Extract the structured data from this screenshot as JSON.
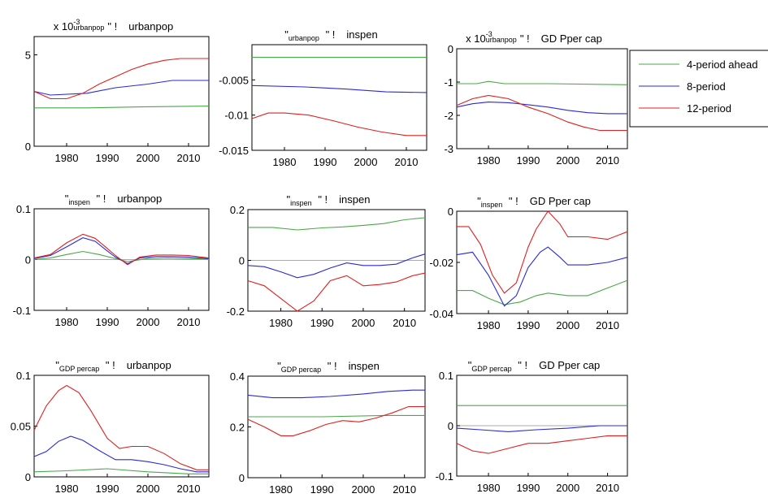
{
  "colors": {
    "s4": "#4aa84a",
    "s8": "#2a2ad8",
    "s12": "#e02020",
    "zero": "#aaaaaa"
  },
  "legend": {
    "entries": [
      "4-period ahead",
      "8-period",
      "12-period"
    ]
  },
  "chart_data": [
    {
      "type": "line",
      "title_small": "x 10",
      "title_exp": "-3",
      "title_sub": "urbanpop",
      "title_mid": "\" !",
      "title_main": "urbanpop",
      "ylim": [
        0,
        6
      ],
      "yticks": [
        "0",
        "5"
      ],
      "ytick_values": [
        0,
        5
      ],
      "xlim": [
        1972,
        2015
      ],
      "xticks": [
        "1980",
        "1990",
        "2000",
        "2010"
      ],
      "xtick_values": [
        1980,
        1990,
        2000,
        2010
      ],
      "zero_line": false,
      "series": [
        {
          "key": "s4",
          "x": [
            1972,
            1985,
            1998,
            2015
          ],
          "y": [
            2.1,
            2.1,
            2.15,
            2.2
          ]
        },
        {
          "key": "s8",
          "x": [
            1972,
            1976,
            1985,
            1992,
            2000,
            2006,
            2015
          ],
          "y": [
            3.0,
            2.8,
            2.9,
            3.2,
            3.4,
            3.6,
            3.6
          ]
        },
        {
          "key": "s12",
          "x": [
            1972,
            1976,
            1980,
            1984,
            1988,
            1992,
            1996,
            2000,
            2004,
            2008,
            2015
          ],
          "y": [
            3.0,
            2.6,
            2.6,
            2.9,
            3.4,
            3.8,
            4.2,
            4.5,
            4.7,
            4.8,
            4.8
          ]
        }
      ]
    },
    {
      "type": "line",
      "title_small": "",
      "title_exp": "",
      "title_sub": "urbanpop",
      "title_mid": "\" !",
      "title_main": "inspen",
      "ylim": [
        -0.015,
        0
      ],
      "yticks": [
        "-0.015",
        "-0.01",
        "-0.005"
      ],
      "ytick_values": [
        -0.015,
        -0.01,
        -0.005
      ],
      "xlim": [
        1972,
        2015
      ],
      "xticks": [
        "1980",
        "1990",
        "2000",
        "2010"
      ],
      "xtick_values": [
        1980,
        1990,
        2000,
        2010
      ],
      "zero_line": false,
      "series": [
        {
          "key": "s4",
          "x": [
            1972,
            2015
          ],
          "y": [
            -0.0018,
            -0.0018
          ]
        },
        {
          "key": "s8",
          "x": [
            1972,
            1985,
            1995,
            2005,
            2015
          ],
          "y": [
            -0.0058,
            -0.006,
            -0.0063,
            -0.0067,
            -0.0068
          ]
        },
        {
          "key": "s12",
          "x": [
            1972,
            1976,
            1980,
            1986,
            1992,
            1998,
            2004,
            2010,
            2015
          ],
          "y": [
            -0.0105,
            -0.0097,
            -0.0097,
            -0.01,
            -0.0108,
            -0.0117,
            -0.0124,
            -0.0129,
            -0.0129
          ]
        }
      ]
    },
    {
      "type": "line",
      "title_small": "x 10",
      "title_exp": "-3",
      "title_sub": "urbanpop",
      "title_mid": "\" !",
      "title_main": "GD Pper cap",
      "ylim": [
        -3,
        0
      ],
      "yticks": [
        "-3",
        "-2",
        "-1",
        "0"
      ],
      "ytick_values": [
        -3,
        -2,
        -1,
        0
      ],
      "xlim": [
        1972,
        2015
      ],
      "xticks": [
        "1980",
        "1990",
        "2000",
        "2010"
      ],
      "xtick_values": [
        1980,
        1990,
        2000,
        2010
      ],
      "zero_line": false,
      "series": [
        {
          "key": "s4",
          "x": [
            1972,
            1977,
            1980,
            1984,
            1995,
            2015
          ],
          "y": [
            -1.05,
            -1.05,
            -0.98,
            -1.05,
            -1.05,
            -1.08
          ]
        },
        {
          "key": "s8",
          "x": [
            1972,
            1976,
            1980,
            1985,
            1990,
            1995,
            2000,
            2005,
            2010,
            2015
          ],
          "y": [
            -1.75,
            -1.65,
            -1.6,
            -1.62,
            -1.68,
            -1.75,
            -1.85,
            -1.92,
            -1.95,
            -1.95
          ]
        },
        {
          "key": "s12",
          "x": [
            1972,
            1976,
            1980,
            1985,
            1990,
            1995,
            2000,
            2004,
            2008,
            2015
          ],
          "y": [
            -1.7,
            -1.5,
            -1.4,
            -1.5,
            -1.75,
            -1.95,
            -2.2,
            -2.35,
            -2.45,
            -2.45
          ]
        }
      ]
    },
    {
      "type": "line",
      "title_small": "",
      "title_exp": "",
      "title_sub": "inspen",
      "title_mid": "\" !",
      "title_main": "urbanpop",
      "ylim": [
        -0.1,
        0.1
      ],
      "yticks": [
        "-0.1",
        "0",
        "0.1"
      ],
      "ytick_values": [
        -0.1,
        0,
        0.1
      ],
      "xlim": [
        1972,
        2015
      ],
      "xticks": [
        "1980",
        "1990",
        "2000",
        "2010"
      ],
      "xtick_values": [
        1980,
        1990,
        2000,
        2010
      ],
      "zero_line": true,
      "series": [
        {
          "key": "s4",
          "x": [
            1972,
            1976,
            1980,
            1984,
            1988,
            1992,
            1995,
            2000,
            2005,
            2010,
            2015
          ],
          "y": [
            0.0,
            0.003,
            0.01,
            0.016,
            0.01,
            0.002,
            -0.004,
            0.002,
            0.003,
            0.002,
            0.001
          ]
        },
        {
          "key": "s8",
          "x": [
            1972,
            1976,
            1980,
            1984,
            1987,
            1990,
            1992,
            1995,
            1998,
            2002,
            2006,
            2010,
            2015
          ],
          "y": [
            0.002,
            0.008,
            0.025,
            0.043,
            0.036,
            0.017,
            0.005,
            -0.008,
            0.003,
            0.006,
            0.006,
            0.005,
            0.002
          ]
        },
        {
          "key": "s12",
          "x": [
            1972,
            1976,
            1980,
            1984,
            1987,
            1990,
            1992,
            1995,
            1998,
            2002,
            2006,
            2010,
            2015
          ],
          "y": [
            0.003,
            0.01,
            0.033,
            0.05,
            0.042,
            0.022,
            0.008,
            -0.01,
            0.005,
            0.009,
            0.009,
            0.008,
            0.003
          ]
        }
      ]
    },
    {
      "type": "line",
      "title_small": "",
      "title_exp": "",
      "title_sub": "inspen",
      "title_mid": "\" !",
      "title_main": "inspen",
      "ylim": [
        -0.2,
        0.2
      ],
      "yticks": [
        "-0.2",
        "0",
        "0.2"
      ],
      "ytick_values": [
        -0.2,
        0,
        0.2
      ],
      "xlim": [
        1972,
        2015
      ],
      "xticks": [
        "1980",
        "1990",
        "2000",
        "2010"
      ],
      "xtick_values": [
        1980,
        1990,
        2000,
        2010
      ],
      "zero_line": true,
      "series": [
        {
          "key": "s4",
          "x": [
            1972,
            1978,
            1984,
            1990,
            1995,
            2000,
            2005,
            2010,
            2015
          ],
          "y": [
            0.13,
            0.13,
            0.12,
            0.128,
            0.132,
            0.138,
            0.145,
            0.16,
            0.168
          ]
        },
        {
          "key": "s8",
          "x": [
            1972,
            1976,
            1980,
            1984,
            1988,
            1992,
            1996,
            2000,
            2004,
            2008,
            2012,
            2015
          ],
          "y": [
            -0.02,
            -0.025,
            -0.045,
            -0.068,
            -0.055,
            -0.03,
            -0.01,
            -0.02,
            -0.02,
            -0.015,
            0.01,
            0.025
          ]
        },
        {
          "key": "s12",
          "x": [
            1972,
            1976,
            1980,
            1984,
            1988,
            1992,
            1996,
            2000,
            2004,
            2008,
            2012,
            2015
          ],
          "y": [
            -0.08,
            -0.1,
            -0.15,
            -0.2,
            -0.16,
            -0.08,
            -0.06,
            -0.1,
            -0.095,
            -0.085,
            -0.06,
            -0.05
          ]
        }
      ]
    },
    {
      "type": "line",
      "title_small": "",
      "title_exp": "",
      "title_sub": "inspen",
      "title_mid": "\" !",
      "title_main": "GD Pper cap",
      "ylim": [
        -0.04,
        0
      ],
      "yticks": [
        "-0.04",
        "-0.02",
        "0"
      ],
      "ytick_values": [
        -0.04,
        -0.02,
        0
      ],
      "xlim": [
        1972,
        2015
      ],
      "xticks": [
        "1980",
        "1990",
        "2000",
        "2010"
      ],
      "xtick_values": [
        1980,
        1990,
        2000,
        2010
      ],
      "zero_line": false,
      "series": [
        {
          "key": "s4",
          "x": [
            1972,
            1976,
            1980,
            1984,
            1988,
            1992,
            1995,
            2000,
            2005,
            2010,
            2015
          ],
          "y": [
            -0.031,
            -0.031,
            -0.034,
            -0.0365,
            -0.0355,
            -0.033,
            -0.032,
            -0.033,
            -0.033,
            -0.03,
            -0.027
          ]
        },
        {
          "key": "s8",
          "x": [
            1972,
            1976,
            1980,
            1984,
            1987,
            1990,
            1993,
            1995,
            1998,
            2000,
            2005,
            2010,
            2015
          ],
          "y": [
            -0.017,
            -0.016,
            -0.025,
            -0.037,
            -0.033,
            -0.022,
            -0.016,
            -0.014,
            -0.018,
            -0.021,
            -0.021,
            -0.02,
            -0.018
          ]
        },
        {
          "key": "s12",
          "x": [
            1972,
            1975,
            1978,
            1981,
            1984,
            1987,
            1990,
            1992,
            1995,
            1998,
            2000,
            2005,
            2010,
            2015
          ],
          "y": [
            -0.006,
            -0.006,
            -0.013,
            -0.025,
            -0.032,
            -0.028,
            -0.014,
            -0.007,
            0.0,
            -0.005,
            -0.01,
            -0.01,
            -0.011,
            -0.008
          ]
        }
      ]
    },
    {
      "type": "line",
      "title_small": "",
      "title_exp": "",
      "title_sub": "GDP percap",
      "title_mid": "\" !",
      "title_main": "urbanpop",
      "ylim": [
        0,
        0.1
      ],
      "yticks": [
        "0",
        "0.05",
        "0.1"
      ],
      "ytick_values": [
        0,
        0.05,
        0.1
      ],
      "xlim": [
        1972,
        2015
      ],
      "xticks": [
        "1980",
        "1990",
        "2000",
        "2010"
      ],
      "xtick_values": [
        1980,
        1990,
        2000,
        2010
      ],
      "zero_line": false,
      "series": [
        {
          "key": "s4",
          "x": [
            1972,
            1980,
            1990,
            2000,
            2010,
            2015
          ],
          "y": [
            0.005,
            0.006,
            0.008,
            0.005,
            0.003,
            0.003
          ]
        },
        {
          "key": "s8",
          "x": [
            1972,
            1975,
            1978,
            1981,
            1984,
            1988,
            1992,
            1996,
            2000,
            2004,
            2008,
            2012,
            2015
          ],
          "y": [
            0.02,
            0.025,
            0.035,
            0.04,
            0.036,
            0.026,
            0.017,
            0.017,
            0.015,
            0.012,
            0.008,
            0.005,
            0.005
          ]
        },
        {
          "key": "s12",
          "x": [
            1972,
            1975,
            1978,
            1980,
            1983,
            1986,
            1990,
            1993,
            1996,
            2000,
            2004,
            2008,
            2012,
            2015
          ],
          "y": [
            0.046,
            0.07,
            0.085,
            0.09,
            0.083,
            0.065,
            0.038,
            0.028,
            0.03,
            0.03,
            0.023,
            0.013,
            0.007,
            0.007
          ]
        }
      ]
    },
    {
      "type": "line",
      "title_small": "",
      "title_exp": "",
      "title_sub": "GDP percap",
      "title_mid": "\" !",
      "title_main": "inspen",
      "ylim": [
        0,
        0.4
      ],
      "yticks": [
        "0",
        "0.2",
        "0.4"
      ],
      "ytick_values": [
        0,
        0.2,
        0.4
      ],
      "xlim": [
        1972,
        2015
      ],
      "xticks": [
        "1980",
        "1990",
        "2000",
        "2010"
      ],
      "xtick_values": [
        1980,
        1990,
        2000,
        2010
      ],
      "zero_line": false,
      "series": [
        {
          "key": "s4",
          "x": [
            1972,
            1990,
            2005,
            2015
          ],
          "y": [
            0.24,
            0.24,
            0.245,
            0.245
          ]
        },
        {
          "key": "s8",
          "x": [
            1972,
            1978,
            1985,
            1992,
            2000,
            2006,
            2012,
            2015
          ],
          "y": [
            0.325,
            0.315,
            0.315,
            0.32,
            0.33,
            0.34,
            0.345,
            0.345
          ]
        },
        {
          "key": "s12",
          "x": [
            1972,
            1976,
            1980,
            1983,
            1987,
            1991,
            1995,
            1999,
            2003,
            2007,
            2011,
            2015
          ],
          "y": [
            0.23,
            0.2,
            0.165,
            0.165,
            0.185,
            0.21,
            0.225,
            0.22,
            0.235,
            0.255,
            0.28,
            0.28
          ]
        }
      ]
    },
    {
      "type": "line",
      "title_small": "",
      "title_exp": "",
      "title_sub": "GDP percap",
      "title_mid": "\" !",
      "title_main": "GD Pper cap",
      "ylim": [
        -0.1,
        0.1
      ],
      "yticks": [
        "-0.1",
        "0",
        "0.1"
      ],
      "ytick_values": [
        -0.1,
        0,
        0.1
      ],
      "xlim": [
        1972,
        2015
      ],
      "xticks": [
        "1980",
        "1990",
        "2000",
        "2010"
      ],
      "xtick_values": [
        1980,
        1990,
        2000,
        2010
      ],
      "zero_line": true,
      "series": [
        {
          "key": "s4",
          "x": [
            1972,
            1990,
            2005,
            2015
          ],
          "y": [
            0.04,
            0.04,
            0.04,
            0.04
          ]
        },
        {
          "key": "s8",
          "x": [
            1972,
            1978,
            1985,
            1992,
            2000,
            2008,
            2015
          ],
          "y": [
            -0.005,
            -0.008,
            -0.012,
            -0.008,
            -0.005,
            0.0,
            0.0
          ]
        },
        {
          "key": "s12",
          "x": [
            1972,
            1976,
            1980,
            1985,
            1990,
            1995,
            2000,
            2005,
            2010,
            2015
          ],
          "y": [
            -0.035,
            -0.05,
            -0.055,
            -0.045,
            -0.035,
            -0.035,
            -0.03,
            -0.025,
            -0.02,
            -0.02
          ]
        }
      ]
    }
  ]
}
